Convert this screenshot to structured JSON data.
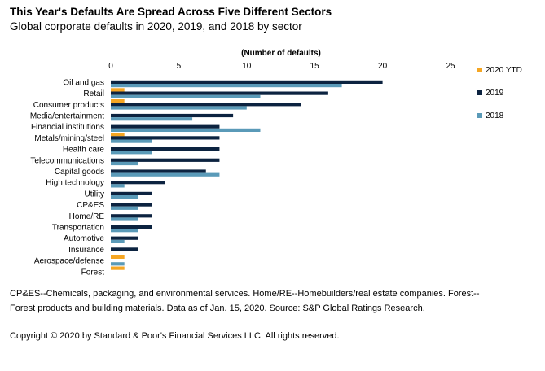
{
  "title": "This Year's Defaults Are Spread Across Five Different Sectors",
  "subtitle": "Global corporate defaults in 2020, 2019, and 2018 by sector",
  "footnote": "CP&ES--Chemicals, packaging, and environmental services. Home/RE--Homebuilders/real estate companies. Forest--Forest products and building materials. Data as of Jan. 15, 2020. Source: S&P Global Ratings Research.",
  "copyright": "Copyright © 2020 by Standard & Poor's Financial Services LLC. All rights reserved.",
  "chart_data": {
    "type": "bar",
    "orientation": "horizontal",
    "xlabel": "(Number of defaults)",
    "xlabel_position": "top",
    "xlim": [
      0,
      25
    ],
    "xticks": [
      0,
      5,
      10,
      15,
      20,
      25
    ],
    "grid": false,
    "legend_position": "right",
    "categories": [
      "Oil and gas",
      "Retail",
      "Consumer products",
      "Media/entertainment",
      "Financial institutions",
      "Metals/mining/steel",
      "Health care",
      "Telecommunications",
      "Capital goods",
      "High technology",
      "Utility",
      "CP&ES",
      "Home/RE",
      "Transportation",
      "Automotive",
      "Insurance",
      "Aerospace/defense",
      "Forest"
    ],
    "series": [
      {
        "name": "2020 YTD",
        "color": "#F5A623",
        "values": [
          0,
          1,
          1,
          0,
          0,
          1,
          0,
          0,
          0,
          0,
          0,
          0,
          0,
          0,
          0,
          0,
          1,
          1
        ]
      },
      {
        "name": "2019",
        "color": "#0C2340",
        "values": [
          20,
          16,
          14,
          9,
          8,
          8,
          8,
          8,
          7,
          4,
          3,
          3,
          3,
          3,
          2,
          2,
          0,
          0
        ]
      },
      {
        "name": "2018",
        "color": "#5A9AB8",
        "values": [
          17,
          11,
          10,
          6,
          11,
          3,
          3,
          2,
          8,
          1,
          2,
          2,
          2,
          2,
          1,
          0,
          1,
          0
        ]
      }
    ]
  }
}
